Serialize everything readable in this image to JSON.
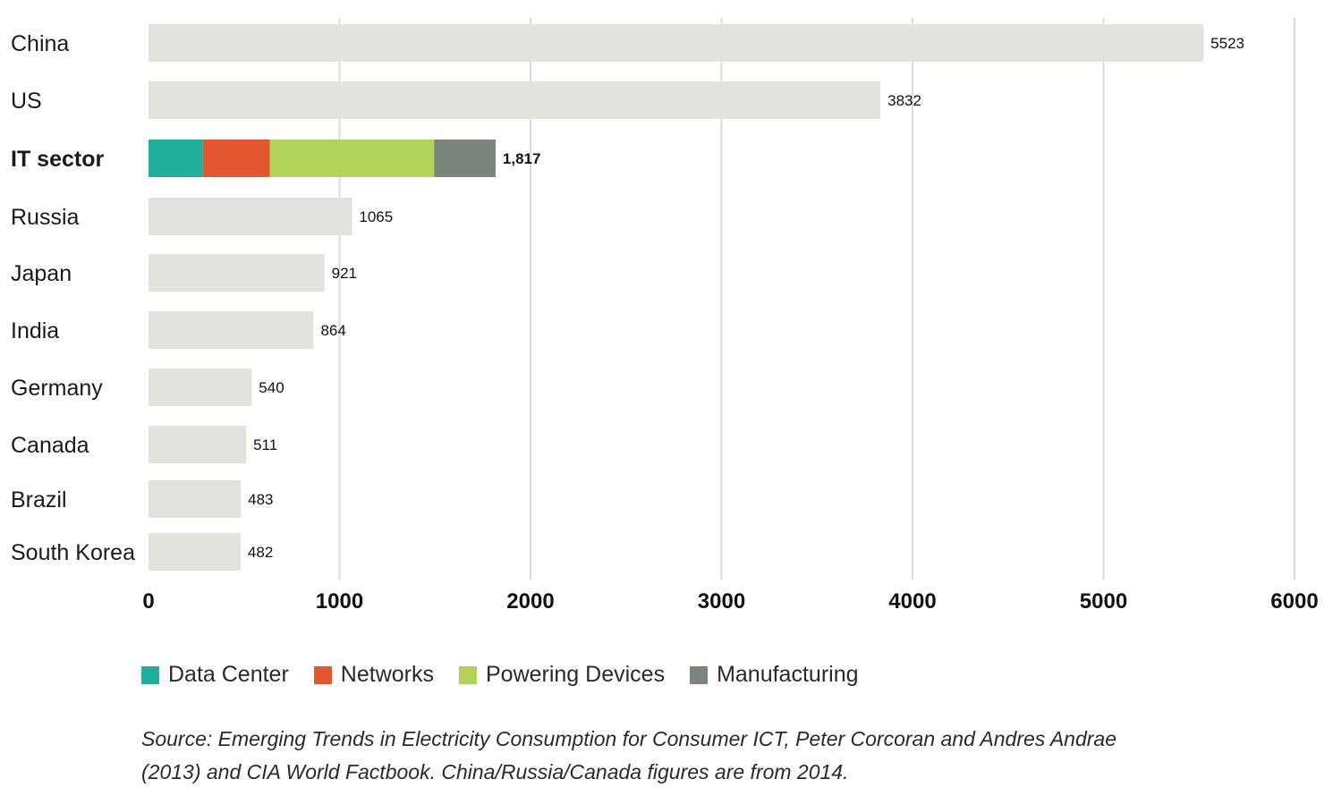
{
  "chart_data": {
    "type": "bar",
    "orientation": "horizontal",
    "categories": [
      "China",
      "US",
      "IT sector",
      "Russia",
      "Japan",
      "India",
      "Germany",
      "Canada",
      "Brazil",
      "South Korea"
    ],
    "values": [
      5523,
      3832,
      1817,
      1065,
      921,
      864,
      540,
      511,
      483,
      482
    ],
    "value_labels": [
      "5523",
      "3832",
      "1,817",
      "1065",
      "921",
      "864",
      "540",
      "511",
      "483",
      "482"
    ],
    "highlight_category": "IT sector",
    "stacked_breakdown": {
      "category": "IT sector",
      "series": [
        {
          "name": "Data Center",
          "value": 285
        },
        {
          "name": "Networks",
          "value": 350
        },
        {
          "name": "Powering Devices",
          "value": 860
        },
        {
          "name": "Manufacturing",
          "value": 322
        }
      ]
    },
    "xlim": [
      0,
      6000
    ],
    "xticks": [
      0,
      1000,
      2000,
      3000,
      4000,
      5000,
      6000
    ],
    "xtick_labels": [
      "0",
      "1000",
      "2000",
      "3000",
      "4000",
      "5000",
      "6000"
    ],
    "grid": "vertical",
    "legend_position": "bottom-left",
    "colors": {
      "bar_default": "#e3e3de",
      "Data Center": "#21ae9b",
      "Networks": "#e2572f",
      "Powering Devices": "#b3d25a",
      "Manufacturing": "#7a867b",
      "grid": "#dcdcdc"
    }
  },
  "legend": [
    {
      "name": "Data Center",
      "color": "#21ae9b"
    },
    {
      "name": "Networks",
      "color": "#e2572f"
    },
    {
      "name": "Powering Devices",
      "color": "#b3d25a"
    },
    {
      "name": "Manufacturing",
      "color": "#7a867b"
    }
  ],
  "source": {
    "line1": "Source: Emerging Trends in Electricity Consumption for Consumer ICT, Peter Corcoran and Andres Andrae",
    "line2": "(2013) and CIA World Factbook. China/Russia/Canada figures are from 2014."
  }
}
